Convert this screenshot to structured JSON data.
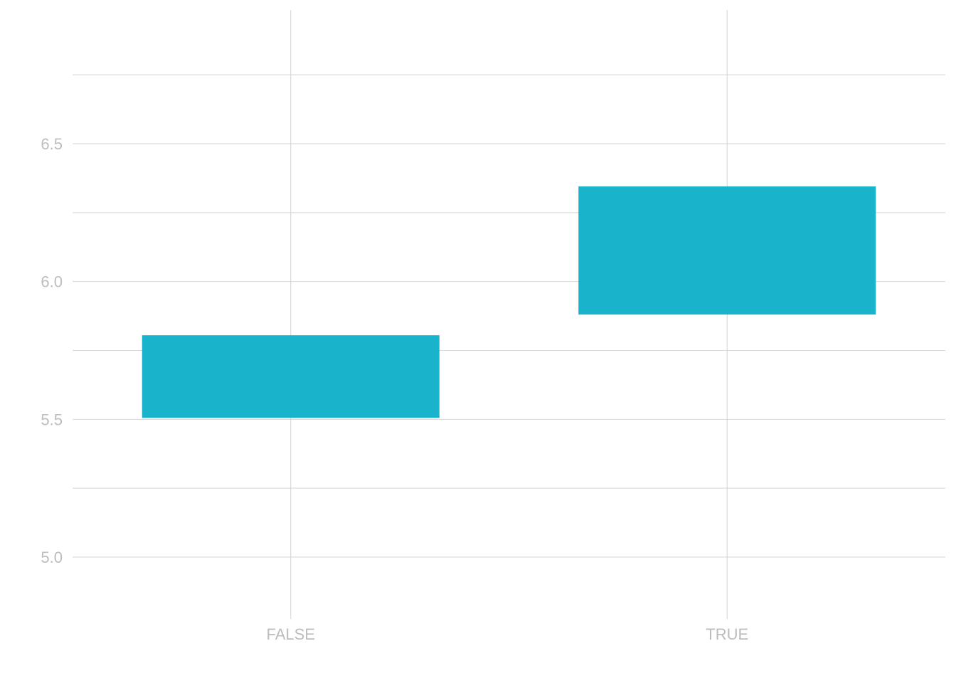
{
  "chart_data": {
    "type": "bar",
    "subtype": "floating-range",
    "title": "",
    "xlabel": "",
    "ylabel": "",
    "categories": [
      "FALSE",
      "TRUE"
    ],
    "series": [
      {
        "color": "#19b4cb",
        "ranges": [
          {
            "category": "FALSE",
            "low": 5.505,
            "high": 5.805
          },
          {
            "category": "TRUE",
            "low": 5.88,
            "high": 6.345
          }
        ]
      }
    ],
    "ylim": [
      4.77,
      6.77
    ],
    "yticks": [
      5.0,
      5.5,
      6.0,
      6.5
    ],
    "ytick_labels": [
      "5.0",
      "5.5",
      "6.0",
      "6.5"
    ],
    "yminor": [
      5.25,
      5.75,
      6.25,
      6.75
    ],
    "grid": true,
    "legend": "none"
  }
}
